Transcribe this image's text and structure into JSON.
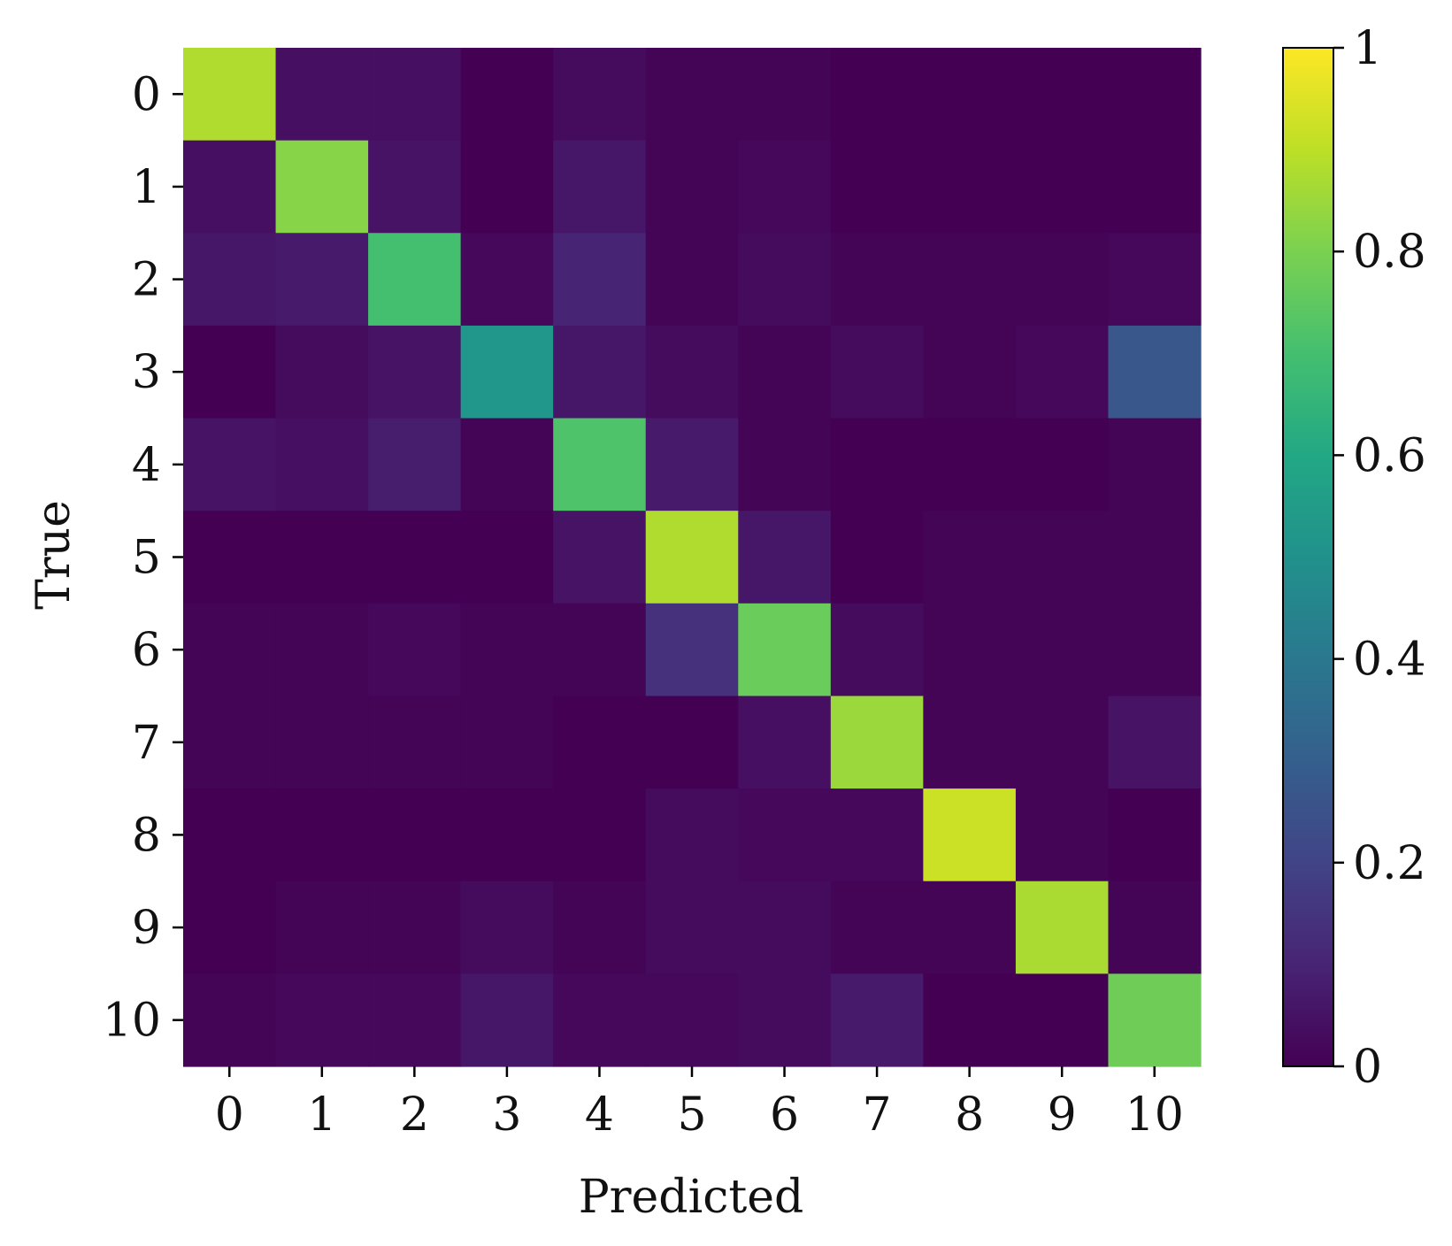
{
  "chart_data": {
    "type": "heatmap",
    "title": "",
    "xlabel": "Predicted",
    "ylabel": "True",
    "x_categories": [
      "0",
      "1",
      "2",
      "3",
      "4",
      "5",
      "6",
      "7",
      "8",
      "9",
      "10"
    ],
    "y_categories": [
      "0",
      "1",
      "2",
      "3",
      "4",
      "5",
      "6",
      "7",
      "8",
      "9",
      "10"
    ],
    "colormap": "viridis",
    "vmin": 0,
    "vmax": 1,
    "colorbar_ticks": [
      {
        "value": 0,
        "label": "0"
      },
      {
        "value": 0.2,
        "label": "0.2"
      },
      {
        "value": 0.4,
        "label": "0.4"
      },
      {
        "value": 0.6,
        "label": "0.6"
      },
      {
        "value": 0.8,
        "label": "0.8"
      },
      {
        "value": 1,
        "label": "1"
      }
    ],
    "values": [
      [
        0.88,
        0.04,
        0.04,
        0.0,
        0.03,
        0.01,
        0.01,
        0.0,
        0.0,
        0.0,
        0.0
      ],
      [
        0.04,
        0.82,
        0.05,
        0.0,
        0.06,
        0.01,
        0.02,
        0.0,
        0.0,
        0.0,
        0.0
      ],
      [
        0.06,
        0.07,
        0.7,
        0.02,
        0.1,
        0.01,
        0.03,
        0.01,
        0.01,
        0.01,
        0.02
      ],
      [
        0.0,
        0.03,
        0.05,
        0.52,
        0.06,
        0.03,
        0.01,
        0.03,
        0.01,
        0.02,
        0.27
      ],
      [
        0.05,
        0.04,
        0.08,
        0.01,
        0.72,
        0.07,
        0.01,
        0.0,
        0.0,
        0.0,
        0.01
      ],
      [
        0.0,
        0.0,
        0.0,
        0.0,
        0.05,
        0.88,
        0.06,
        0.0,
        0.01,
        0.01,
        0.01
      ],
      [
        0.01,
        0.01,
        0.02,
        0.01,
        0.01,
        0.14,
        0.77,
        0.03,
        0.01,
        0.01,
        0.01
      ],
      [
        0.01,
        0.01,
        0.01,
        0.01,
        0.0,
        0.0,
        0.04,
        0.85,
        0.01,
        0.01,
        0.05
      ],
      [
        0.0,
        0.0,
        0.0,
        0.0,
        0.0,
        0.03,
        0.02,
        0.02,
        0.92,
        0.01,
        0.0
      ],
      [
        0.0,
        0.01,
        0.01,
        0.03,
        0.01,
        0.03,
        0.03,
        0.01,
        0.01,
        0.87,
        0.01
      ],
      [
        0.01,
        0.02,
        0.02,
        0.06,
        0.02,
        0.02,
        0.03,
        0.07,
        0.0,
        0.0,
        0.78
      ]
    ]
  }
}
